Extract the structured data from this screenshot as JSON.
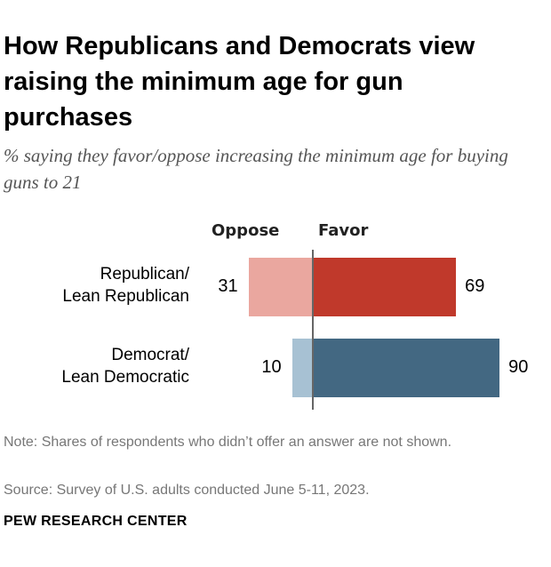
{
  "title": "How Republicans and Democrats view raising the minimum age for gun purchases",
  "subtitle": "% saying they favor/oppose increasing the minimum age for buying guns to 21",
  "colors": {
    "rep_oppose": "#eaa79f",
    "rep_favor": "#c0392b",
    "dem_oppose": "#a7c1d3",
    "dem_favor": "#436882"
  },
  "chart_data": {
    "type": "bar",
    "orientation": "diverging-horizontal",
    "categories": [
      "Republican/\nLean Republican",
      "Democrat/\nLean Democratic"
    ],
    "column_headers": {
      "oppose": "Oppose",
      "favor": "Favor"
    },
    "series": [
      {
        "name": "Oppose",
        "values": [
          31,
          10
        ]
      },
      {
        "name": "Favor",
        "values": [
          69,
          90
        ]
      }
    ],
    "xlim": [
      0,
      100
    ]
  },
  "note": "Note: Shares of respondents who didn’t offer an answer are not shown.",
  "source": "Source: Survey of U.S. adults conducted June 5-11, 2023.",
  "brand": "PEW RESEARCH CENTER"
}
